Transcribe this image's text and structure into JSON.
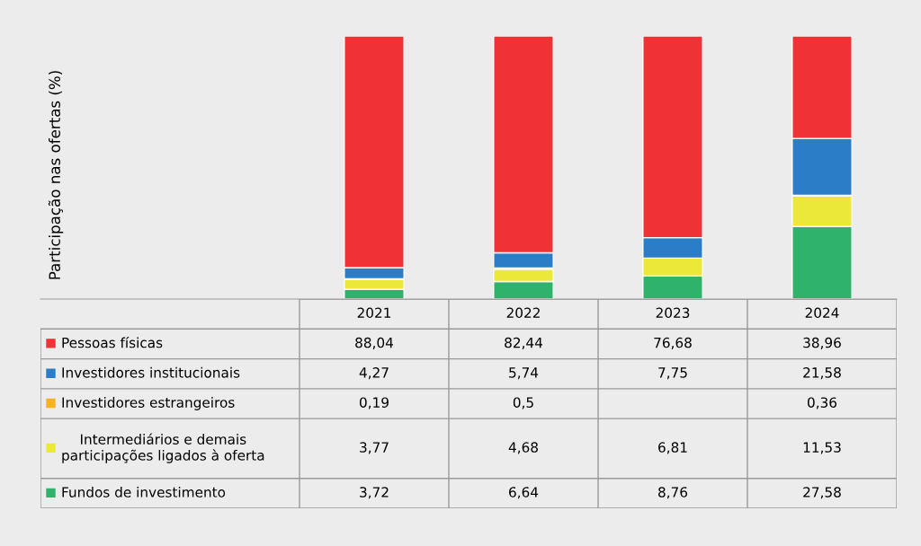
{
  "chart_data": {
    "type": "bar",
    "stacked": true,
    "annotations": [
      "Participação nas ofertas (%)"
    ],
    "categories": [
      "2021",
      "2022",
      "2023",
      "2024"
    ],
    "ylim": [
      0,
      100
    ],
    "tick_labels": "x",
    "legend": "bottom left",
    "series": [
      {
        "name": "Fundos de investimento",
        "color": "#2fb36a",
        "values": [
          3.72,
          6.64,
          8.76,
          27.58
        ],
        "value_labels": [
          "3,72",
          "6,64",
          "8,76",
          "27,58"
        ]
      },
      {
        "name": "Intermediários e demais\nparticipações ligados à oferta",
        "color": "#ece83a",
        "values": [
          3.77,
          4.68,
          6.81,
          11.53
        ],
        "value_labels": [
          "3,77",
          "4,68",
          "6,81",
          "11,53"
        ]
      },
      {
        "name": "Investidores estrangeiros",
        "color": "#f5b323",
        "values": [
          0.19,
          0.5,
          null,
          0.36
        ],
        "value_labels": [
          "0,19",
          "0,5",
          null,
          "0,36"
        ]
      },
      {
        "name": "Investidores institucionais",
        "color": "#2a7dc6",
        "values": [
          4.27,
          5.74,
          7.75,
          21.58
        ],
        "value_labels": [
          "4,27",
          "5,74",
          "7,75",
          "21,58"
        ]
      },
      {
        "name": "Pessoas físicas",
        "color": "#ee3235",
        "values": [
          88.04,
          82.44,
          76.68,
          38.96
        ],
        "value_labels": [
          "88,04",
          "82,44",
          "76,68",
          "38,96"
        ]
      }
    ]
  }
}
